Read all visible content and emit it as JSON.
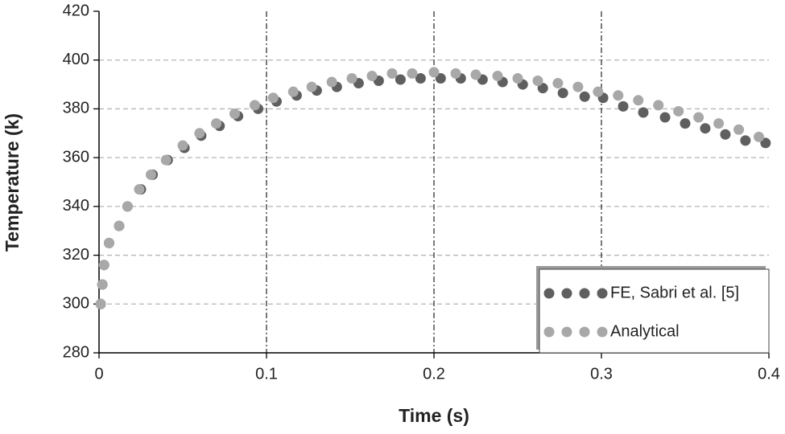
{
  "chart_data": {
    "type": "scatter",
    "x_label": "Time (s)",
    "y_label": "Temperature (k)",
    "xlim": [
      0,
      0.4
    ],
    "xticks": [
      0,
      0.1,
      0.2,
      0.3,
      0.4
    ],
    "ylim": [
      280,
      420
    ],
    "yticks": [
      280,
      300,
      320,
      340,
      360,
      380,
      400,
      420
    ],
    "grid": true,
    "legend": "lower right",
    "series": [
      {
        "name": "FE, Sabri et al. [5]",
        "color": "#5f5f5f",
        "x": [
          0.001,
          0.002,
          0.003,
          0.006,
          0.012,
          0.017,
          0.025,
          0.032,
          0.041,
          0.051,
          0.061,
          0.072,
          0.083,
          0.095,
          0.106,
          0.118,
          0.13,
          0.142,
          0.155,
          0.167,
          0.18,
          0.192,
          0.204,
          0.216,
          0.229,
          0.241,
          0.253,
          0.265,
          0.277,
          0.29,
          0.301,
          0.313,
          0.325,
          0.338,
          0.35,
          0.362,
          0.374,
          0.386,
          0.398
        ],
        "values": [
          300,
          308,
          316,
          325,
          332,
          340,
          347,
          353,
          359,
          364,
          369,
          373,
          377,
          380,
          383,
          385.5,
          387.5,
          389,
          390.5,
          391.5,
          392,
          392.5,
          392.5,
          392.5,
          392,
          391,
          390,
          388.5,
          386.5,
          385,
          384.5,
          381,
          378.5,
          376.5,
          374,
          372,
          369.5,
          367,
          366
        ]
      },
      {
        "name": "Analytical",
        "color": "#a8a8a8",
        "x": [
          0.001,
          0.002,
          0.003,
          0.006,
          0.012,
          0.017,
          0.024,
          0.031,
          0.04,
          0.05,
          0.06,
          0.07,
          0.081,
          0.093,
          0.104,
          0.116,
          0.127,
          0.139,
          0.151,
          0.163,
          0.175,
          0.187,
          0.2,
          0.213,
          0.225,
          0.238,
          0.25,
          0.262,
          0.274,
          0.286,
          0.298,
          0.31,
          0.322,
          0.334,
          0.346,
          0.358,
          0.37,
          0.382,
          0.394
        ],
        "values": [
          300,
          308,
          316,
          325,
          332,
          340,
          347,
          353,
          359,
          365,
          370,
          374,
          378,
          381.5,
          384.5,
          387,
          389,
          391,
          392.5,
          393.5,
          394.5,
          394.5,
          395,
          394.5,
          394,
          393.5,
          392.5,
          391.5,
          390.5,
          389,
          387,
          385.5,
          383.5,
          381.5,
          379,
          376.5,
          374,
          371.5,
          368.5
        ]
      }
    ]
  }
}
